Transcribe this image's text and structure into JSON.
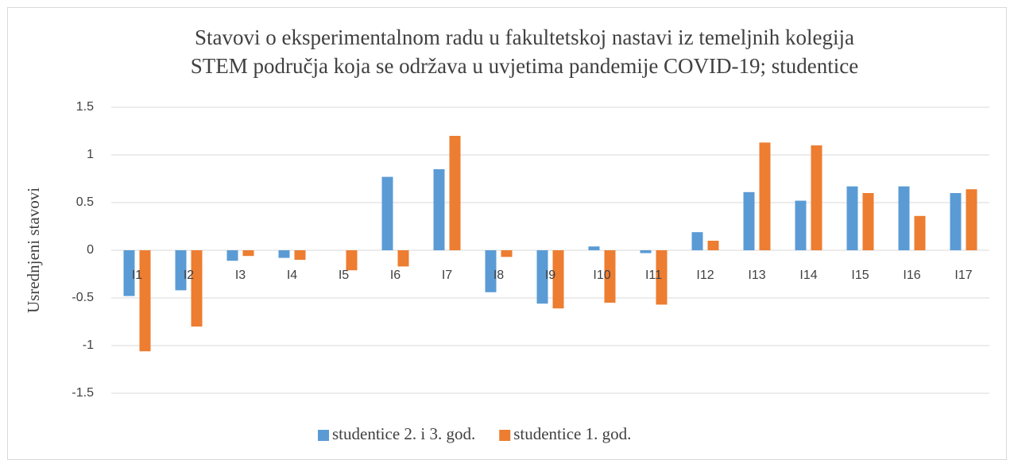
{
  "chart_data": {
    "type": "bar",
    "title": [
      "Stavovi o eksperimentalnom radu u fakultetskoj nastavi iz temeljnih kolegija",
      "STEM područja koja se održava u uvjetima pandemije COVID-19; studentice"
    ],
    "y_label": "Usrednjeni stavovi",
    "categories": [
      "I1",
      "I2",
      "I3",
      "I4",
      "I5",
      "I6",
      "I7",
      "I8",
      "I9",
      "I10",
      "I11",
      "I12",
      "I13",
      "I14",
      "I15",
      "I16",
      "I17"
    ],
    "series": [
      {
        "name": "studentice 2. i 3. god.",
        "color": "#5b9bd5",
        "values": [
          -0.48,
          -0.42,
          -0.11,
          -0.08,
          0,
          0.77,
          0.85,
          -0.44,
          -0.56,
          0.04,
          -0.03,
          0.19,
          0.61,
          0.52,
          0.67,
          0.67,
          0.6
        ]
      },
      {
        "name": "studentice 1. god.",
        "color": "#ed7d31",
        "values": [
          -1.06,
          -0.8,
          -0.06,
          -0.1,
          -0.21,
          -0.17,
          1.2,
          -0.07,
          -0.61,
          -0.55,
          -0.57,
          0.1,
          1.13,
          1.1,
          0.6,
          0.36,
          0.64
        ]
      }
    ],
    "ylim": [
      -1.5,
      1.5
    ],
    "yticks": [
      -1.5,
      -1,
      -0.5,
      0,
      0.5,
      1,
      1.5
    ],
    "grid": true,
    "legend": "bottom"
  }
}
